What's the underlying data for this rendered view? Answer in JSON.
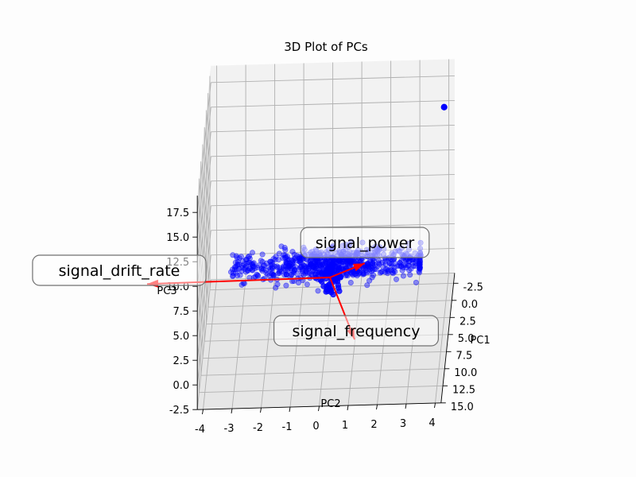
{
  "chart_data": {
    "type": "scatter",
    "projection": "3d",
    "title": "3D Plot of PCs",
    "xlabel": "PC1",
    "ylabel": "PC2",
    "zlabel": "PC3",
    "x_ticks": [
      "-2.5",
      "0.0",
      "2.5",
      "5.0",
      "7.5",
      "10.0",
      "12.5",
      "15.0"
    ],
    "y_ticks": [
      "-4",
      "-3",
      "-2",
      "-1",
      "0",
      "1",
      "2",
      "3",
      "4"
    ],
    "z_ticks": [
      "-2.5",
      "0.0",
      "2.5",
      "5.0",
      "7.5",
      "10.0",
      "12.5",
      "15.0",
      "17.5"
    ],
    "xlim": [
      -4,
      15
    ],
    "ylim": [
      -4.2,
      4.2
    ],
    "zlim": [
      -2.5,
      19
    ],
    "grid": true,
    "point_color": "#0000ff",
    "arrow_color": "#ff0000",
    "outlier_point": {
      "x": -3.5,
      "y": 3.85,
      "z": 14.7
    },
    "loadings": [
      {
        "name": "signal_power",
        "x": 0,
        "y": 1.2,
        "z": 1.5
      },
      {
        "name": "signal_drift_rate",
        "x": 0,
        "y": -6.3,
        "z": 0
      },
      {
        "name": "signal_frequency",
        "x": 0,
        "y": 0.85,
        "z": -6.2
      }
    ],
    "point_count": 700
  }
}
